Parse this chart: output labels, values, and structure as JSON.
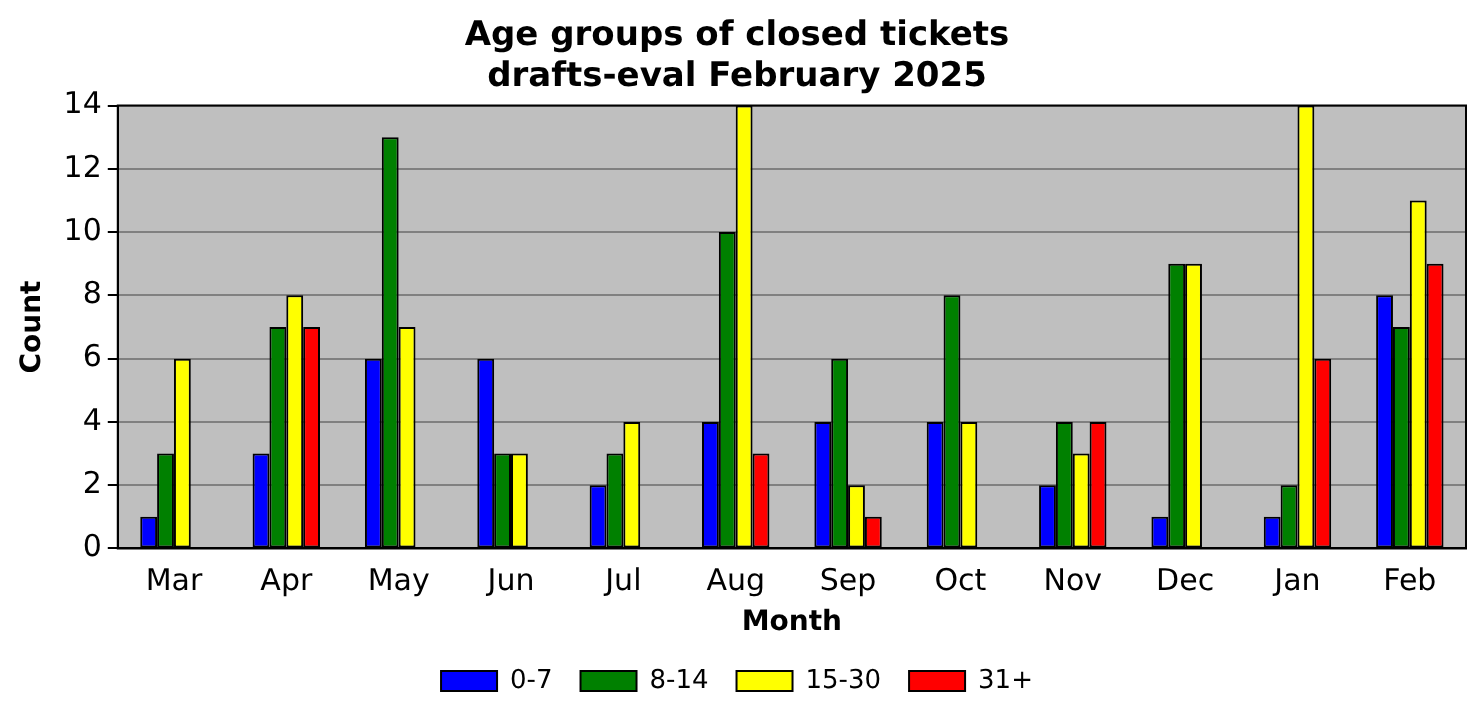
{
  "chart_data": {
    "type": "bar",
    "title": "Age groups of closed tickets",
    "subtitle": "drafts-eval February 2025",
    "xlabel": "Month",
    "ylabel": "Count",
    "categories": [
      "Mar",
      "Apr",
      "May",
      "Jun",
      "Jul",
      "Aug",
      "Sep",
      "Oct",
      "Nov",
      "Dec",
      "Jan",
      "Feb"
    ],
    "series": [
      {
        "name": "0-7",
        "color": "#0000ff",
        "values": [
          1,
          3,
          6,
          6,
          2,
          4,
          4,
          4,
          2,
          1,
          1,
          8
        ]
      },
      {
        "name": "8-14",
        "color": "#008000",
        "values": [
          3,
          7,
          13,
          3,
          3,
          10,
          6,
          8,
          4,
          9,
          2,
          7
        ]
      },
      {
        "name": "15-30",
        "color": "#ffff00",
        "values": [
          6,
          8,
          7,
          3,
          4,
          14,
          2,
          4,
          3,
          9,
          14,
          11
        ]
      },
      {
        "name": "31+",
        "color": "#ff0000",
        "values": [
          0,
          7,
          0,
          0,
          0,
          3,
          1,
          0,
          4,
          0,
          6,
          9
        ]
      }
    ],
    "ylim": [
      0,
      14
    ],
    "yticks": [
      0,
      2,
      4,
      6,
      8,
      10,
      12,
      14
    ],
    "grid": "y",
    "legend": "bottom"
  }
}
